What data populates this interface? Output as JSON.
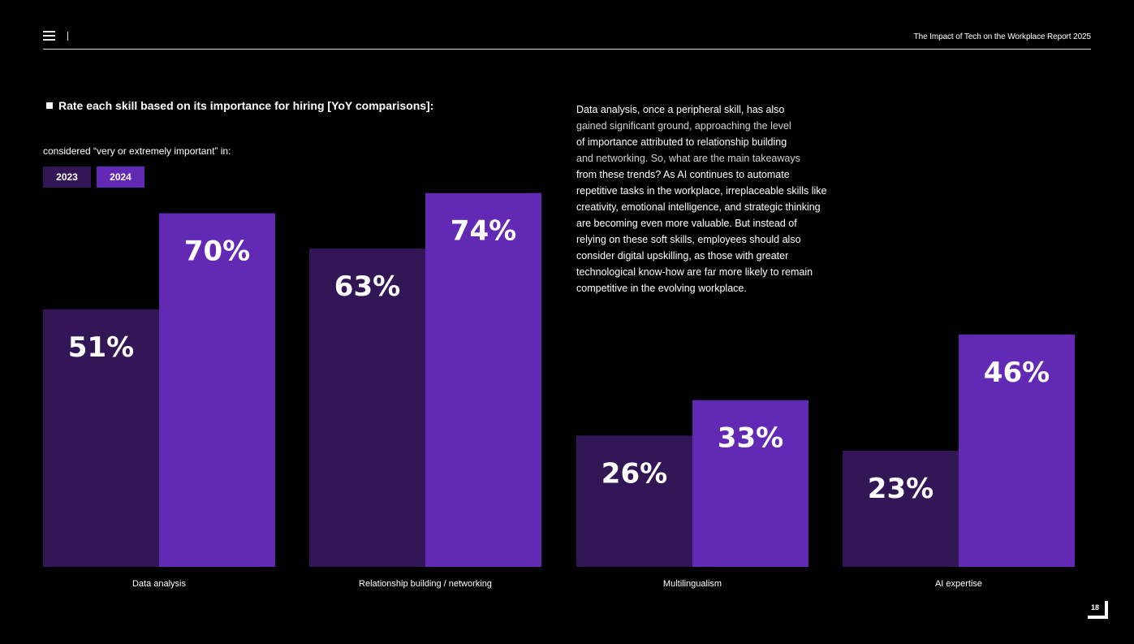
{
  "header": {
    "report_title": "The Impact of Tech on the Workplace Report 2025"
  },
  "subtitle": "considered “very or extremely important” in:",
  "description": {
    "p1": "Data analysis, once a peripheral skill, has also",
    "p2": "gained significant ground, approaching the level",
    "p3": "of importance attributed to relationship building",
    "p4": "and networking. So, what are the main takeaways",
    "p5": "from these trends? As AI continues to automate repetitive tasks in the workplace, irreplaceable skills like creativity, emotional intelligence, and strategic thinking are becoming even more valuable. But instead of relying on these soft skills, employees should also consider digital upskilling, as those with greater technological know-how are far more likely to remain competitive in the evolving workplace."
  },
  "page_number": "18",
  "colors": {
    "background": "#000000",
    "series_2023": "#321655",
    "series_2024": "#6129b4",
    "text": "#ffffff"
  },
  "chart_data": {
    "type": "bar",
    "title": "Rate each skill based on its importance for hiring [YoY comparisons]:",
    "xlabel": "",
    "ylabel": "",
    "ylim": [
      0,
      100
    ],
    "grid": false,
    "legend": "top-left",
    "categories": [
      "Data analysis",
      "Relationship building / networking",
      "Multilingualism",
      "AI expertise"
    ],
    "series": [
      {
        "name": "2023",
        "values": [
          51,
          63,
          26,
          23
        ],
        "labels": [
          "51%",
          "63%",
          "26%",
          "23%"
        ]
      },
      {
        "name": "2024",
        "values": [
          70,
          74,
          33,
          46
        ],
        "labels": [
          "70%",
          "74%",
          "33%",
          "46%"
        ]
      }
    ]
  }
}
